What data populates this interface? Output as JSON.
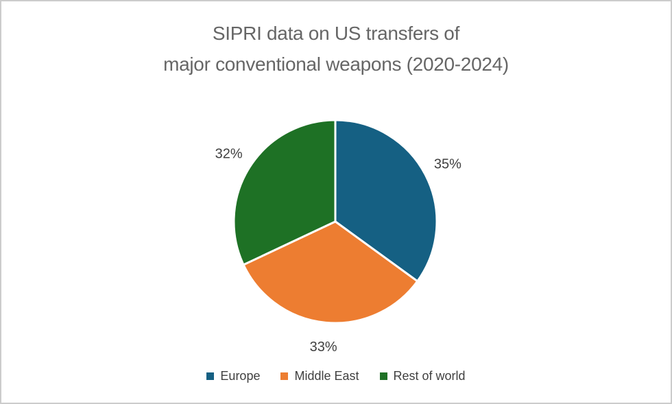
{
  "window": {
    "background": "#ffffff",
    "border_color": "#cccccc"
  },
  "chart_data": {
    "type": "pie",
    "title_line1": "SIPRI data on US transfers of",
    "title_line2": "major conventional weapons (2020-2024)",
    "title_color": "#666666",
    "label_color": "#404040",
    "slice_border_color": "#ffffff",
    "direction": "clockwise",
    "start_angle_deg": 0,
    "legend_position": "bottom",
    "data_labels": "outside_percent",
    "slices": [
      {
        "label": "Europe",
        "value": 35,
        "display": "35%",
        "color": "#156083"
      },
      {
        "label": "Middle East",
        "value": 33,
        "display": "33%",
        "color": "#ED7D31"
      },
      {
        "label": "Rest of world",
        "value": 32,
        "display": "32%",
        "color": "#1E7125"
      }
    ]
  }
}
